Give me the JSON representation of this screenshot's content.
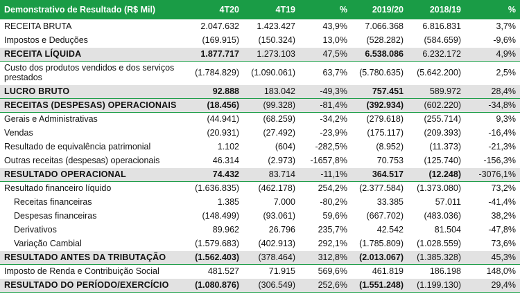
{
  "header": {
    "title": "Demonstrativo de Resultado (R$ Mil)",
    "columns": [
      "4T20",
      "4T19",
      "%",
      "2019/20",
      "2018/19",
      "%"
    ]
  },
  "rows": [
    {
      "label": "RECEITA BRUTA",
      "values": [
        "2.047.632",
        "1.423.427",
        "43,9%",
        "7.066.368",
        "6.816.831",
        "3,7%"
      ]
    },
    {
      "label": "Impostos e Deduções",
      "values": [
        "(169.915)",
        "(150.324)",
        "13,0%",
        "(528.282)",
        "(584.659)",
        "-9,6%"
      ]
    },
    {
      "label": "RECEITA LÍQUIDA",
      "values": [
        "1.877.717",
        "1.273.103",
        "47,5%",
        "6.538.086",
        "6.232.172",
        "4,9%"
      ]
    },
    {
      "label": "Custo dos produtos vendidos e dos serviços prestados",
      "values": [
        "(1.784.829)",
        "(1.090.061)",
        "63,7%",
        "(5.780.635)",
        "(5.642.200)",
        "2,5%"
      ]
    },
    {
      "label": "LUCRO BRUTO",
      "values": [
        "92.888",
        "183.042",
        "-49,3%",
        "757.451",
        "589.972",
        "28,4%"
      ]
    },
    {
      "label": "RECEITAS (DESPESAS) OPERACIONAIS",
      "values": [
        "(18.456)",
        "(99.328)",
        "-81,4%",
        "(392.934)",
        "(602.220)",
        "-34,8%"
      ]
    },
    {
      "label": "Gerais e Administrativas",
      "values": [
        "(44.941)",
        "(68.259)",
        "-34,2%",
        "(279.618)",
        "(255.714)",
        "9,3%"
      ]
    },
    {
      "label": "Vendas",
      "values": [
        "(20.931)",
        "(27.492)",
        "-23,9%",
        "(175.117)",
        "(209.393)",
        "-16,4%"
      ]
    },
    {
      "label": "Resultado de equivalência patrimonial",
      "values": [
        "1.102",
        "(604)",
        "-282,5%",
        "(8.952)",
        "(11.373)",
        "-21,3%"
      ]
    },
    {
      "label": "Outras receitas (despesas) operacionais",
      "values": [
        "46.314",
        "(2.973)",
        "-1657,8%",
        "70.753",
        "(125.740)",
        "-156,3%"
      ]
    },
    {
      "label": "RESULTADO OPERACIONAL",
      "values": [
        "74.432",
        "83.714",
        "-11,1%",
        "364.517",
        "(12.248)",
        "-3076,1%"
      ]
    },
    {
      "label": "Resultado financeiro líquido",
      "values": [
        "(1.636.835)",
        "(462.178)",
        "254,2%",
        "(2.377.584)",
        "(1.373.080)",
        "73,2%"
      ]
    },
    {
      "label": "Receitas financeiras",
      "values": [
        "1.385",
        "7.000",
        "-80,2%",
        "33.385",
        "57.011",
        "-41,4%"
      ]
    },
    {
      "label": "Despesas financeiras",
      "values": [
        "(148.499)",
        "(93.061)",
        "59,6%",
        "(667.702)",
        "(483.036)",
        "38,2%"
      ]
    },
    {
      "label": "Derivativos",
      "values": [
        "89.962",
        "26.796",
        "235,7%",
        "42.542",
        "81.504",
        "-47,8%"
      ]
    },
    {
      "label": "Variação Cambial",
      "values": [
        "(1.579.683)",
        "(402.913)",
        "292,1%",
        "(1.785.809)",
        "(1.028.559)",
        "73,6%"
      ]
    },
    {
      "label": "RESULTADO ANTES DA TRIBUTAÇÃO",
      "values": [
        "(1.562.403)",
        "(378.464)",
        "312,8%",
        "(2.013.067)",
        "(1.385.328)",
        "45,3%"
      ]
    },
    {
      "label": "Imposto de Renda e Contribuição Social",
      "values": [
        "481.527",
        "71.915",
        "569,6%",
        "461.819",
        "186.198",
        "148,0%"
      ]
    },
    {
      "label": "RESULTADO DO PERÍODO/EXERCÍCIO",
      "values": [
        "(1.080.876)",
        "(306.549)",
        "252,6%",
        "(1.551.248)",
        "(1.199.130)",
        "29,4%"
      ]
    }
  ],
  "colors": {
    "header_bg": "#1a9c46",
    "total_bg": "#e2e2e2",
    "rule": "#1a9c46"
  }
}
